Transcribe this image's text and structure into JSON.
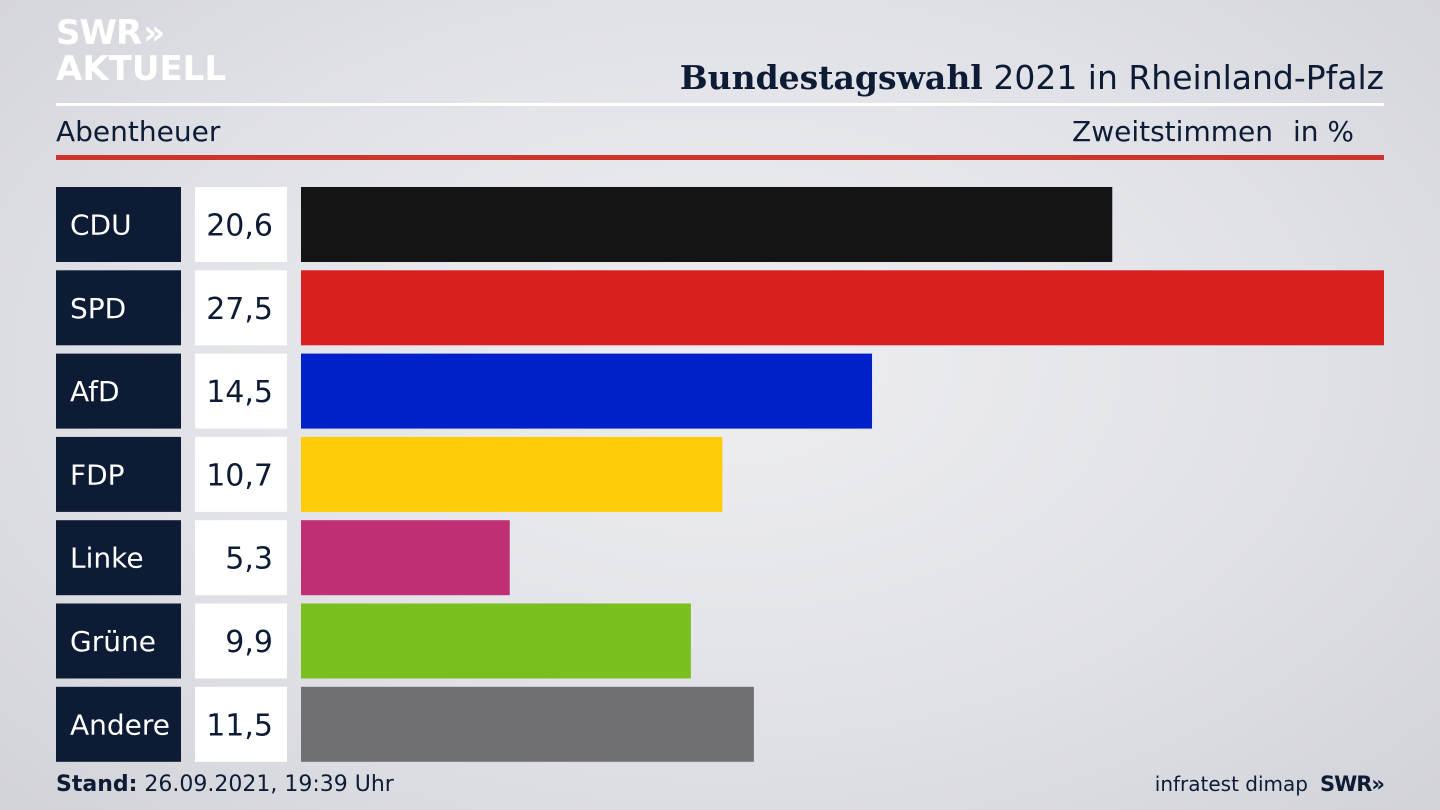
{
  "logo": {
    "line1": "SWR",
    "chevrons": "»",
    "line2": "AKTUELL"
  },
  "header": {
    "title_bold": "Bundestagswahl",
    "title_rest": " 2021 in Rheinland-Pfalz",
    "region": "Abentheuer",
    "vote_type": "Zweitstimmen",
    "unit": "in %"
  },
  "footer": {
    "stand_label": "Stand:",
    "stand_value": " 26.09.2021, 19:39 Uhr",
    "source": "infratest dimap",
    "brand": "SWR»"
  },
  "chart_data": {
    "type": "bar",
    "orientation": "horizontal",
    "categories": [
      "CDU",
      "SPD",
      "AfD",
      "FDP",
      "Linke",
      "Grüne",
      "Andere"
    ],
    "values": [
      20.6,
      27.5,
      14.5,
      10.7,
      5.3,
      9.9,
      11.5
    ],
    "value_labels": [
      "20,6",
      "27,5",
      "14,5",
      "10,7",
      "5,3",
      "9,9",
      "11,5"
    ],
    "colors": [
      "#141414",
      "#d82020",
      "#0021c9",
      "#ffcc09",
      "#be2f74",
      "#79bf1d",
      "#707072"
    ],
    "label_box_color": "#0d1b35",
    "value_box_color": "#ffffff",
    "xlim": [
      0,
      27.5
    ],
    "grid": false,
    "legend": "none"
  }
}
